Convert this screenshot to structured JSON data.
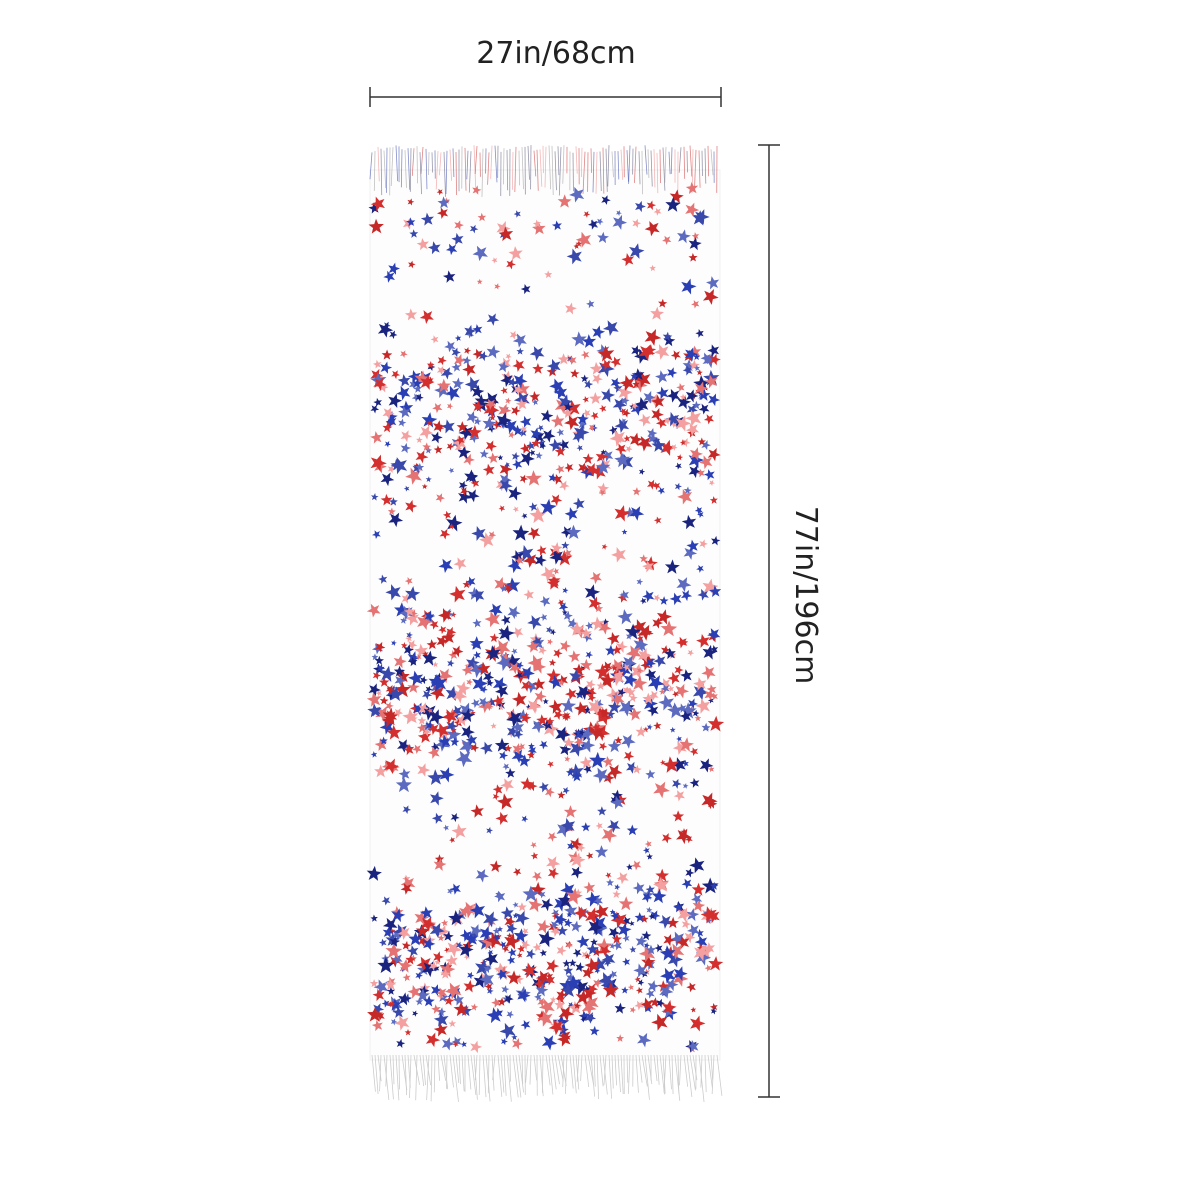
{
  "width_label": "27in/68cm",
  "height_label": "77in/196cm"
}
